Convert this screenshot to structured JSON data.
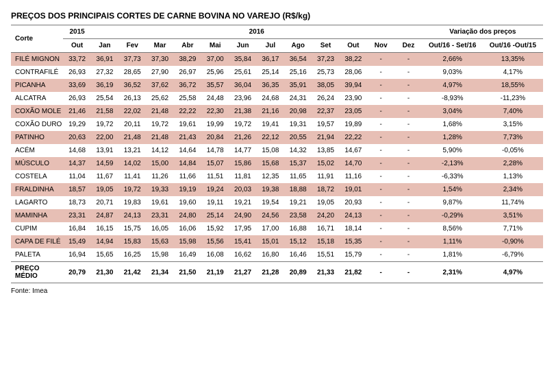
{
  "title": "PREÇOS DOS PRINCIPAIS CORTES DE CARNE BOVINA NO VAREJO (R$/kg)",
  "source": "Fonte: Imea",
  "headers": {
    "corte": "Corte",
    "y2015": "2015",
    "y2016": "2016",
    "variacao": "Variação dos preços",
    "out": "Out",
    "months": [
      "Jan",
      "Fev",
      "Mar",
      "Abr",
      "Mai",
      "Jun",
      "Jul",
      "Ago",
      "Set",
      "Out",
      "Nov",
      "Dez"
    ],
    "var1": "Out/16 - Set/16",
    "var2": "Out/16 -Out/15"
  },
  "rows": [
    {
      "corte": "FILÉ MIGNON",
      "o15": "33,72",
      "m": [
        "36,91",
        "37,73",
        "37,30",
        "38,29",
        "37,00",
        "35,84",
        "36,17",
        "36,54",
        "37,23",
        "38,22",
        "-",
        "-"
      ],
      "v1": "2,66%",
      "v2": "13,35%"
    },
    {
      "corte": "CONTRAFILÉ",
      "o15": "26,93",
      "m": [
        "27,32",
        "28,65",
        "27,90",
        "26,97",
        "25,96",
        "25,61",
        "25,14",
        "25,16",
        "25,73",
        "28,06",
        "-",
        "-"
      ],
      "v1": "9,03%",
      "v2": "4,17%"
    },
    {
      "corte": "PICANHA",
      "o15": "33,69",
      "m": [
        "36,19",
        "36,52",
        "37,62",
        "36,72",
        "35,57",
        "36,04",
        "36,35",
        "35,91",
        "38,05",
        "39,94",
        "-",
        "-"
      ],
      "v1": "4,97%",
      "v2": "18,55%"
    },
    {
      "corte": "ALCATRA",
      "o15": "26,93",
      "m": [
        "25,54",
        "26,13",
        "25,62",
        "25,58",
        "24,48",
        "23,96",
        "24,68",
        "24,31",
        "26,24",
        "23,90",
        "-",
        "-"
      ],
      "v1": "-8,93%",
      "v2": "-11,23%"
    },
    {
      "corte": "COXÃO MOLE",
      "o15": "21,46",
      "m": [
        "21,58",
        "22,02",
        "21,48",
        "22,22",
        "22,30",
        "21,38",
        "21,16",
        "20,98",
        "22,37",
        "23,05",
        "-",
        "-"
      ],
      "v1": "3,04%",
      "v2": "7,40%"
    },
    {
      "corte": "COXÃO DURO",
      "o15": "19,29",
      "m": [
        "19,72",
        "20,11",
        "19,72",
        "19,61",
        "19,99",
        "19,72",
        "19,41",
        "19,31",
        "19,57",
        "19,89",
        "-",
        "-"
      ],
      "v1": "1,68%",
      "v2": "3,15%"
    },
    {
      "corte": "PATINHO",
      "o15": "20,63",
      "m": [
        "22,00",
        "21,48",
        "21,48",
        "21,43",
        "20,84",
        "21,26",
        "22,12",
        "20,55",
        "21,94",
        "22,22",
        "-",
        "-"
      ],
      "v1": "1,28%",
      "v2": "7,73%"
    },
    {
      "corte": "ACÉM",
      "o15": "14,68",
      "m": [
        "13,91",
        "13,21",
        "14,12",
        "14,64",
        "14,78",
        "14,77",
        "15,08",
        "14,32",
        "13,85",
        "14,67",
        "-",
        "-"
      ],
      "v1": "5,90%",
      "v2": "-0,05%"
    },
    {
      "corte": "MÚSCULO",
      "o15": "14,37",
      "m": [
        "14,59",
        "14,02",
        "15,00",
        "14,84",
        "15,07",
        "15,86",
        "15,68",
        "15,37",
        "15,02",
        "14,70",
        "-",
        "-"
      ],
      "v1": "-2,13%",
      "v2": "2,28%"
    },
    {
      "corte": "COSTELA",
      "o15": "11,04",
      "m": [
        "11,67",
        "11,41",
        "11,26",
        "11,66",
        "11,51",
        "11,81",
        "12,35",
        "11,65",
        "11,91",
        "11,16",
        "-",
        "-"
      ],
      "v1": "-6,33%",
      "v2": "1,13%"
    },
    {
      "corte": "FRALDINHA",
      "o15": "18,57",
      "m": [
        "19,05",
        "19,72",
        "19,33",
        "19,19",
        "19,24",
        "20,03",
        "19,38",
        "18,88",
        "18,72",
        "19,01",
        "-",
        "-"
      ],
      "v1": "1,54%",
      "v2": "2,34%"
    },
    {
      "corte": "LAGARTO",
      "o15": "18,73",
      "m": [
        "20,71",
        "19,83",
        "19,61",
        "19,60",
        "19,11",
        "19,21",
        "19,54",
        "19,21",
        "19,05",
        "20,93",
        "-",
        "-"
      ],
      "v1": "9,87%",
      "v2": "11,74%"
    },
    {
      "corte": "MAMINHA",
      "o15": "23,31",
      "m": [
        "24,87",
        "24,13",
        "23,31",
        "24,80",
        "25,14",
        "24,90",
        "24,56",
        "23,58",
        "24,20",
        "24,13",
        "-",
        "-"
      ],
      "v1": "-0,29%",
      "v2": "3,51%"
    },
    {
      "corte": "CUPIM",
      "o15": "16,84",
      "m": [
        "16,15",
        "15,75",
        "16,05",
        "16,06",
        "15,92",
        "17,95",
        "17,00",
        "16,88",
        "16,71",
        "18,14",
        "-",
        "-"
      ],
      "v1": "8,56%",
      "v2": "7,71%"
    },
    {
      "corte": "CAPA DE FILÉ",
      "o15": "15,49",
      "m": [
        "14,94",
        "15,83",
        "15,63",
        "15,98",
        "15,56",
        "15,41",
        "15,01",
        "15,12",
        "15,18",
        "15,35",
        "-",
        "-"
      ],
      "v1": "1,11%",
      "v2": "-0,90%"
    },
    {
      "corte": "PALETA",
      "o15": "16,94",
      "m": [
        "15,65",
        "16,25",
        "15,98",
        "16,49",
        "16,08",
        "16,62",
        "16,80",
        "16,46",
        "15,51",
        "15,79",
        "-",
        "-"
      ],
      "v1": "1,81%",
      "v2": "-6,79%"
    }
  ],
  "footer": {
    "corte": "PREÇO MÉDIO",
    "o15": "20,79",
    "m": [
      "21,30",
      "21,42",
      "21,34",
      "21,50",
      "21,19",
      "21,27",
      "21,28",
      "20,89",
      "21,33",
      "21,82",
      "-",
      "-"
    ],
    "v1": "2,31%",
    "v2": "4,97%"
  },
  "style": {
    "stripe_color": "#e7bfb5",
    "border_color": "#7a7a7a",
    "font_size_pt": 10
  }
}
